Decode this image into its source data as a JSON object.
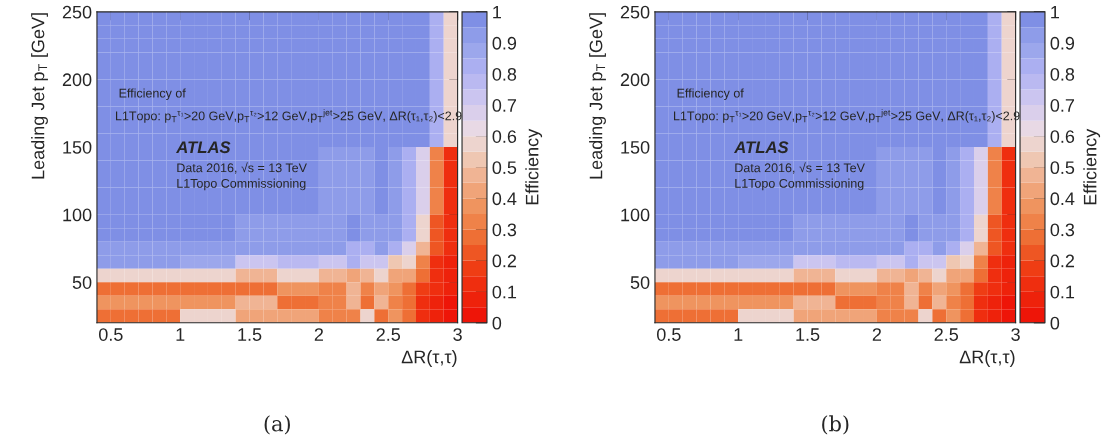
{
  "chart_data": [
    {
      "type": "heatmap",
      "xlabel": "ΔR(τ,τ)",
      "ylabel": "Leading Jet p$_{T}$ [GeV]",
      "clabel": "Efficiency",
      "x": [
        0.45,
        0.55,
        0.65,
        0.75,
        0.85,
        0.95,
        1.05,
        1.15,
        1.25,
        1.35,
        1.45,
        1.55,
        1.65,
        1.75,
        1.85,
        1.95,
        2.05,
        2.15,
        2.25,
        2.35,
        2.45,
        2.55,
        2.65,
        2.75,
        2.85,
        2.95
      ],
      "y": [
        245,
        235,
        225,
        215,
        205,
        195,
        185,
        175,
        165,
        155,
        145,
        135,
        125,
        115,
        105,
        95,
        85,
        75,
        65,
        55,
        45,
        35,
        25
      ],
      "cells": [
        [
          0.97,
          0.97,
          0.97,
          0.97,
          0.97,
          0.97,
          0.97,
          0.97,
          0.97,
          0.97,
          0.97,
          0.97,
          0.97,
          0.97,
          0.97,
          0.97,
          0.97,
          0.97,
          0.97,
          0.97,
          0.97,
          0.97,
          0.97,
          0.97,
          0.85,
          0.55
        ],
        [
          0.97,
          0.97,
          0.97,
          0.97,
          0.97,
          0.97,
          0.97,
          0.97,
          0.97,
          0.97,
          0.97,
          0.97,
          0.97,
          0.97,
          0.97,
          0.97,
          0.97,
          0.97,
          0.97,
          0.97,
          0.97,
          0.97,
          0.97,
          0.97,
          0.85,
          0.55
        ],
        [
          0.97,
          0.97,
          0.97,
          0.97,
          0.97,
          0.97,
          0.97,
          0.97,
          0.97,
          0.97,
          0.97,
          0.97,
          0.97,
          0.97,
          0.97,
          0.97,
          0.97,
          0.97,
          0.97,
          0.97,
          0.97,
          0.97,
          0.97,
          0.97,
          0.85,
          0.55
        ],
        [
          0.97,
          0.97,
          0.97,
          0.97,
          0.97,
          0.97,
          0.97,
          0.97,
          0.97,
          0.97,
          0.97,
          0.97,
          0.97,
          0.97,
          0.97,
          0.97,
          0.97,
          0.97,
          0.97,
          0.97,
          0.97,
          0.97,
          0.97,
          0.97,
          0.85,
          0.55
        ],
        [
          0.97,
          0.97,
          0.97,
          0.97,
          0.97,
          0.97,
          0.97,
          0.97,
          0.97,
          0.97,
          0.97,
          0.97,
          0.97,
          0.97,
          0.97,
          0.97,
          0.97,
          0.97,
          0.97,
          0.97,
          0.97,
          0.97,
          0.97,
          0.97,
          0.85,
          0.55
        ],
        [
          0.97,
          0.97,
          0.97,
          0.97,
          0.97,
          0.97,
          0.97,
          0.97,
          0.97,
          0.97,
          0.97,
          0.97,
          0.97,
          0.97,
          0.97,
          0.97,
          0.97,
          0.97,
          0.97,
          0.97,
          0.97,
          0.97,
          0.97,
          0.97,
          0.85,
          0.55
        ],
        [
          0.97,
          0.97,
          0.97,
          0.97,
          0.97,
          0.97,
          0.97,
          0.97,
          0.97,
          0.97,
          0.97,
          0.97,
          0.97,
          0.97,
          0.97,
          0.97,
          0.97,
          0.97,
          0.97,
          0.97,
          0.97,
          0.97,
          0.97,
          0.97,
          0.85,
          0.55
        ],
        [
          0.97,
          0.97,
          0.97,
          0.97,
          0.97,
          0.97,
          0.97,
          0.97,
          0.97,
          0.97,
          0.97,
          0.97,
          0.97,
          0.97,
          0.97,
          0.97,
          0.97,
          0.97,
          0.97,
          0.97,
          0.97,
          0.97,
          0.97,
          0.97,
          0.85,
          0.55
        ],
        [
          0.97,
          0.97,
          0.97,
          0.97,
          0.97,
          0.97,
          0.97,
          0.97,
          0.97,
          0.97,
          0.97,
          0.97,
          0.97,
          0.97,
          0.97,
          0.97,
          0.97,
          0.97,
          0.97,
          0.97,
          0.97,
          0.97,
          0.97,
          0.97,
          0.85,
          0.55
        ],
        [
          0.97,
          0.97,
          0.97,
          0.97,
          0.97,
          0.97,
          0.97,
          0.97,
          0.97,
          0.97,
          0.97,
          0.97,
          0.97,
          0.97,
          0.97,
          0.97,
          0.97,
          0.97,
          0.97,
          0.97,
          0.97,
          0.97,
          0.97,
          0.97,
          0.85,
          0.55
        ],
        [
          0.97,
          0.97,
          0.97,
          0.97,
          0.97,
          0.97,
          0.97,
          0.97,
          0.97,
          0.97,
          0.97,
          0.97,
          0.97,
          0.97,
          0.97,
          0.97,
          0.93,
          0.93,
          0.93,
          0.93,
          0.97,
          0.9,
          0.85,
          0.68,
          0.33,
          0.15
        ],
        [
          0.97,
          0.97,
          0.97,
          0.97,
          0.97,
          0.97,
          0.97,
          0.97,
          0.97,
          0.97,
          0.97,
          0.97,
          0.97,
          0.97,
          0.97,
          0.97,
          0.93,
          0.93,
          0.93,
          0.93,
          0.97,
          0.9,
          0.85,
          0.68,
          0.33,
          0.15
        ],
        [
          0.97,
          0.97,
          0.97,
          0.97,
          0.97,
          0.97,
          0.97,
          0.97,
          0.97,
          0.97,
          0.97,
          0.97,
          0.97,
          0.97,
          0.97,
          0.97,
          0.93,
          0.93,
          0.93,
          0.93,
          0.97,
          0.9,
          0.85,
          0.68,
          0.33,
          0.15
        ],
        [
          0.97,
          0.97,
          0.97,
          0.97,
          0.97,
          0.97,
          0.97,
          0.97,
          0.97,
          0.97,
          0.97,
          0.97,
          0.97,
          0.97,
          0.97,
          0.97,
          0.93,
          0.93,
          0.93,
          0.93,
          0.97,
          0.9,
          0.85,
          0.68,
          0.33,
          0.15
        ],
        [
          0.97,
          0.97,
          0.97,
          0.97,
          0.97,
          0.97,
          0.97,
          0.97,
          0.97,
          0.97,
          0.97,
          0.97,
          0.97,
          0.97,
          0.97,
          0.97,
          0.93,
          0.93,
          0.93,
          0.93,
          0.97,
          0.9,
          0.85,
          0.68,
          0.33,
          0.15
        ],
        [
          0.97,
          0.97,
          0.97,
          0.97,
          0.97,
          0.97,
          0.97,
          0.97,
          0.97,
          0.97,
          0.93,
          0.93,
          0.93,
          0.93,
          0.93,
          0.93,
          0.93,
          0.93,
          0.97,
          0.93,
          0.93,
          0.93,
          0.85,
          0.55,
          0.2,
          0.12
        ],
        [
          0.97,
          0.97,
          0.97,
          0.97,
          0.97,
          0.97,
          0.97,
          0.97,
          0.97,
          0.97,
          0.93,
          0.93,
          0.93,
          0.93,
          0.93,
          0.93,
          0.93,
          0.93,
          0.97,
          0.93,
          0.93,
          0.93,
          0.85,
          0.55,
          0.2,
          0.12
        ],
        [
          0.93,
          0.93,
          0.93,
          0.93,
          0.93,
          0.93,
          0.93,
          0.93,
          0.93,
          0.93,
          0.93,
          0.93,
          0.93,
          0.9,
          0.9,
          0.9,
          0.9,
          0.9,
          0.85,
          0.85,
          0.9,
          0.85,
          0.65,
          0.48,
          0.2,
          0.1
        ],
        [
          0.9,
          0.9,
          0.9,
          0.9,
          0.9,
          0.9,
          0.88,
          0.88,
          0.88,
          0.88,
          0.72,
          0.72,
          0.72,
          0.78,
          0.78,
          0.78,
          0.72,
          0.72,
          0.82,
          0.72,
          0.72,
          0.5,
          0.55,
          0.35,
          0.12,
          0.08
        ],
        [
          0.57,
          0.57,
          0.57,
          0.57,
          0.57,
          0.57,
          0.6,
          0.6,
          0.6,
          0.6,
          0.45,
          0.45,
          0.45,
          0.6,
          0.6,
          0.6,
          0.45,
          0.45,
          0.4,
          0.45,
          0.55,
          0.42,
          0.42,
          0.28,
          0.12,
          0.08
        ],
        [
          0.3,
          0.3,
          0.3,
          0.3,
          0.3,
          0.3,
          0.3,
          0.3,
          0.3,
          0.3,
          0.3,
          0.3,
          0.3,
          0.38,
          0.38,
          0.38,
          0.32,
          0.32,
          0.45,
          0.32,
          0.4,
          0.38,
          0.25,
          0.18,
          0.1,
          0.05
        ],
        [
          0.38,
          0.38,
          0.38,
          0.38,
          0.38,
          0.38,
          0.38,
          0.38,
          0.38,
          0.38,
          0.45,
          0.45,
          0.45,
          0.3,
          0.3,
          0.3,
          0.35,
          0.35,
          0.45,
          0.3,
          0.45,
          0.32,
          0.25,
          0.15,
          0.05,
          0.03
        ],
        [
          0.3,
          0.3,
          0.3,
          0.3,
          0.3,
          0.3,
          0.55,
          0.55,
          0.55,
          0.55,
          0.42,
          0.42,
          0.42,
          0.42,
          0.42,
          0.42,
          0.32,
          0.32,
          0.32,
          0.55,
          0.25,
          0.38,
          0.25,
          0.15,
          0.05,
          0.03
        ]
      ],
      "xlim": [
        0.4,
        3.0
      ],
      "xticks": [
        0.5,
        1,
        1.5,
        2,
        2.5,
        3
      ],
      "ylim": [
        20,
        250
      ],
      "yticks": [
        50,
        100,
        150,
        200,
        250
      ],
      "clim": [
        0,
        1
      ],
      "cticks": [
        0,
        0.1,
        0.2,
        0.3,
        0.4,
        0.5,
        0.6,
        0.7,
        0.8,
        0.9,
        1
      ],
      "annotations": [
        "Efficiency of",
        "L1Topo: p$_{T}$$^{τ₁}$>20 GeV,p$_{T}$$^{τ₂}$>12 GeV,p$_{T}$$^{jet}$>25 GeV, ΔR(τ₁,τ₂)<2.9",
        "ATLAS",
        "Data 2016, √s = 13 TeV",
        "L1Topo Commissioning",
        "(a)"
      ]
    },
    {
      "type": "heatmap",
      "xlabel": "ΔR(τ,τ)",
      "ylabel": "Leading Jet p$_{T}$ [GeV]",
      "clabel": "Efficiency",
      "x": [
        0.45,
        0.55,
        0.65,
        0.75,
        0.85,
        0.95,
        1.05,
        1.15,
        1.25,
        1.35,
        1.45,
        1.55,
        1.65,
        1.75,
        1.85,
        1.95,
        2.05,
        2.15,
        2.25,
        2.35,
        2.45,
        2.55,
        2.65,
        2.75,
        2.85,
        2.95
      ],
      "y": [
        245,
        235,
        225,
        215,
        205,
        195,
        185,
        175,
        165,
        155,
        145,
        135,
        125,
        115,
        105,
        95,
        85,
        75,
        65,
        55,
        45,
        35,
        25
      ],
      "cells": [
        [
          0.97,
          0.97,
          0.97,
          0.97,
          0.97,
          0.97,
          0.97,
          0.97,
          0.97,
          0.97,
          0.97,
          0.97,
          0.97,
          0.97,
          0.97,
          0.97,
          0.97,
          0.97,
          0.97,
          0.97,
          0.97,
          0.97,
          0.97,
          0.97,
          0.85,
          0.55
        ],
        [
          0.97,
          0.97,
          0.97,
          0.97,
          0.97,
          0.97,
          0.97,
          0.97,
          0.97,
          0.97,
          0.97,
          0.97,
          0.97,
          0.97,
          0.97,
          0.97,
          0.97,
          0.97,
          0.97,
          0.97,
          0.97,
          0.97,
          0.97,
          0.97,
          0.85,
          0.55
        ],
        [
          0.97,
          0.97,
          0.97,
          0.97,
          0.97,
          0.97,
          0.97,
          0.97,
          0.97,
          0.97,
          0.97,
          0.97,
          0.97,
          0.97,
          0.97,
          0.97,
          0.97,
          0.97,
          0.97,
          0.97,
          0.97,
          0.97,
          0.97,
          0.97,
          0.85,
          0.55
        ],
        [
          0.97,
          0.97,
          0.97,
          0.97,
          0.97,
          0.97,
          0.97,
          0.97,
          0.97,
          0.97,
          0.97,
          0.97,
          0.97,
          0.97,
          0.97,
          0.97,
          0.97,
          0.97,
          0.97,
          0.97,
          0.97,
          0.97,
          0.97,
          0.97,
          0.85,
          0.55
        ],
        [
          0.97,
          0.97,
          0.97,
          0.97,
          0.97,
          0.97,
          0.97,
          0.97,
          0.97,
          0.97,
          0.97,
          0.97,
          0.97,
          0.97,
          0.97,
          0.97,
          0.97,
          0.97,
          0.97,
          0.97,
          0.97,
          0.97,
          0.97,
          0.97,
          0.85,
          0.55
        ],
        [
          0.97,
          0.97,
          0.97,
          0.97,
          0.97,
          0.97,
          0.97,
          0.97,
          0.97,
          0.97,
          0.97,
          0.97,
          0.97,
          0.97,
          0.97,
          0.97,
          0.97,
          0.97,
          0.97,
          0.97,
          0.97,
          0.97,
          0.97,
          0.97,
          0.85,
          0.55
        ],
        [
          0.97,
          0.97,
          0.97,
          0.97,
          0.97,
          0.97,
          0.97,
          0.97,
          0.97,
          0.97,
          0.97,
          0.97,
          0.97,
          0.97,
          0.97,
          0.97,
          0.97,
          0.97,
          0.97,
          0.97,
          0.97,
          0.97,
          0.97,
          0.97,
          0.85,
          0.55
        ],
        [
          0.97,
          0.97,
          0.97,
          0.97,
          0.97,
          0.97,
          0.97,
          0.97,
          0.97,
          0.97,
          0.97,
          0.97,
          0.97,
          0.97,
          0.97,
          0.97,
          0.97,
          0.97,
          0.97,
          0.97,
          0.97,
          0.97,
          0.97,
          0.97,
          0.85,
          0.55
        ],
        [
          0.97,
          0.97,
          0.97,
          0.97,
          0.97,
          0.97,
          0.97,
          0.97,
          0.97,
          0.97,
          0.97,
          0.97,
          0.97,
          0.97,
          0.97,
          0.97,
          0.97,
          0.97,
          0.97,
          0.97,
          0.97,
          0.97,
          0.97,
          0.97,
          0.85,
          0.55
        ],
        [
          0.97,
          0.97,
          0.97,
          0.97,
          0.97,
          0.97,
          0.97,
          0.97,
          0.97,
          0.97,
          0.97,
          0.97,
          0.97,
          0.97,
          0.97,
          0.97,
          0.97,
          0.97,
          0.97,
          0.97,
          0.97,
          0.97,
          0.97,
          0.97,
          0.85,
          0.55
        ],
        [
          0.97,
          0.97,
          0.97,
          0.97,
          0.97,
          0.97,
          0.97,
          0.97,
          0.97,
          0.97,
          0.97,
          0.97,
          0.97,
          0.97,
          0.97,
          0.97,
          0.93,
          0.93,
          0.93,
          0.93,
          0.97,
          0.9,
          0.85,
          0.68,
          0.33,
          0.15
        ],
        [
          0.97,
          0.97,
          0.97,
          0.97,
          0.97,
          0.97,
          0.97,
          0.97,
          0.97,
          0.97,
          0.97,
          0.97,
          0.97,
          0.97,
          0.97,
          0.97,
          0.93,
          0.93,
          0.93,
          0.93,
          0.97,
          0.9,
          0.85,
          0.68,
          0.33,
          0.15
        ],
        [
          0.97,
          0.97,
          0.97,
          0.97,
          0.97,
          0.97,
          0.97,
          0.97,
          0.97,
          0.97,
          0.97,
          0.97,
          0.97,
          0.97,
          0.97,
          0.97,
          0.93,
          0.93,
          0.93,
          0.93,
          0.97,
          0.9,
          0.85,
          0.68,
          0.33,
          0.15
        ],
        [
          0.97,
          0.97,
          0.97,
          0.97,
          0.97,
          0.97,
          0.97,
          0.97,
          0.97,
          0.97,
          0.97,
          0.97,
          0.97,
          0.97,
          0.97,
          0.97,
          0.93,
          0.93,
          0.93,
          0.93,
          0.97,
          0.9,
          0.85,
          0.68,
          0.33,
          0.15
        ],
        [
          0.97,
          0.97,
          0.97,
          0.97,
          0.97,
          0.97,
          0.97,
          0.97,
          0.97,
          0.97,
          0.97,
          0.97,
          0.97,
          0.97,
          0.97,
          0.97,
          0.93,
          0.93,
          0.93,
          0.93,
          0.97,
          0.9,
          0.85,
          0.68,
          0.33,
          0.15
        ],
        [
          0.97,
          0.97,
          0.97,
          0.97,
          0.97,
          0.97,
          0.97,
          0.97,
          0.97,
          0.97,
          0.93,
          0.93,
          0.93,
          0.93,
          0.93,
          0.93,
          0.93,
          0.93,
          0.97,
          0.93,
          0.93,
          0.93,
          0.85,
          0.55,
          0.2,
          0.12
        ],
        [
          0.97,
          0.97,
          0.97,
          0.97,
          0.97,
          0.97,
          0.97,
          0.97,
          0.97,
          0.97,
          0.93,
          0.93,
          0.93,
          0.93,
          0.93,
          0.93,
          0.93,
          0.93,
          0.97,
          0.93,
          0.93,
          0.93,
          0.85,
          0.55,
          0.2,
          0.12
        ],
        [
          0.93,
          0.93,
          0.93,
          0.93,
          0.93,
          0.93,
          0.93,
          0.93,
          0.93,
          0.93,
          0.93,
          0.93,
          0.93,
          0.9,
          0.9,
          0.9,
          0.9,
          0.9,
          0.85,
          0.85,
          0.9,
          0.85,
          0.65,
          0.48,
          0.2,
          0.1
        ],
        [
          0.9,
          0.9,
          0.9,
          0.9,
          0.9,
          0.9,
          0.88,
          0.88,
          0.88,
          0.88,
          0.72,
          0.72,
          0.72,
          0.78,
          0.78,
          0.78,
          0.72,
          0.72,
          0.82,
          0.72,
          0.72,
          0.5,
          0.55,
          0.35,
          0.12,
          0.08
        ],
        [
          0.57,
          0.57,
          0.57,
          0.57,
          0.57,
          0.57,
          0.6,
          0.6,
          0.6,
          0.6,
          0.45,
          0.45,
          0.45,
          0.6,
          0.6,
          0.6,
          0.45,
          0.45,
          0.4,
          0.45,
          0.55,
          0.42,
          0.42,
          0.28,
          0.12,
          0.08
        ],
        [
          0.3,
          0.3,
          0.3,
          0.3,
          0.3,
          0.3,
          0.3,
          0.3,
          0.3,
          0.3,
          0.3,
          0.3,
          0.3,
          0.38,
          0.38,
          0.38,
          0.32,
          0.32,
          0.45,
          0.32,
          0.4,
          0.38,
          0.25,
          0.18,
          0.1,
          0.05
        ],
        [
          0.38,
          0.38,
          0.38,
          0.38,
          0.38,
          0.38,
          0.38,
          0.38,
          0.38,
          0.38,
          0.45,
          0.45,
          0.45,
          0.3,
          0.3,
          0.3,
          0.35,
          0.35,
          0.45,
          0.3,
          0.45,
          0.32,
          0.25,
          0.15,
          0.05,
          0.03
        ],
        [
          0.3,
          0.3,
          0.3,
          0.3,
          0.3,
          0.3,
          0.55,
          0.55,
          0.55,
          0.55,
          0.42,
          0.42,
          0.42,
          0.42,
          0.42,
          0.42,
          0.32,
          0.32,
          0.32,
          0.55,
          0.25,
          0.38,
          0.25,
          0.15,
          0.05,
          0.03
        ]
      ],
      "xlim": [
        0.4,
        3.0
      ],
      "xticks": [
        0.5,
        1,
        1.5,
        2,
        2.5,
        3
      ],
      "ylim": [
        20,
        250
      ],
      "yticks": [
        50,
        100,
        150,
        200,
        250
      ],
      "clim": [
        0,
        1
      ],
      "cticks": [
        0,
        0.1,
        0.2,
        0.3,
        0.4,
        0.5,
        0.6,
        0.7,
        0.8,
        0.9,
        1
      ],
      "annotations": [
        "Efficiency of",
        "L1Topo: p$_{T}$$^{τ₁}$>20 GeV,p$_{T}$$^{τ₂}$>12 GeV,p$_{T}$$^{jet}$>25 GeV, ΔR(τ₁,τ₂)<2.9",
        "ATLAS",
        "Data 2016, √s = 13 TeV",
        "L1Topo Commissioning",
        "(b)"
      ]
    }
  ]
}
